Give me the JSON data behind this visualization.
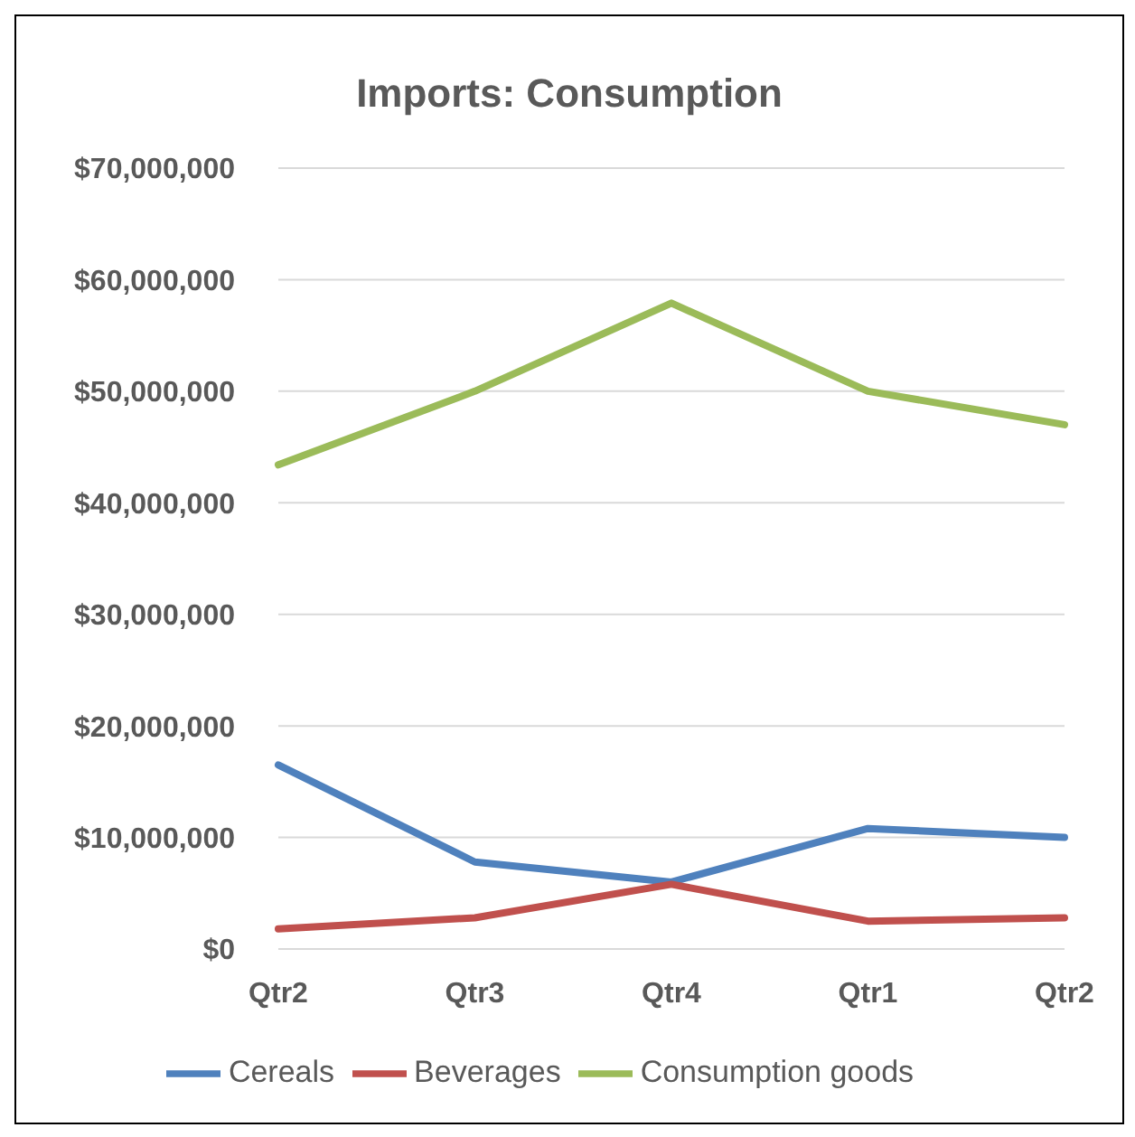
{
  "chart_data": {
    "type": "line",
    "title": "Imports: Consumption",
    "categories": [
      "Qtr2",
      "Qtr3",
      "Qtr4",
      "Qtr1",
      "Qtr2"
    ],
    "series": [
      {
        "name": "Cereals",
        "color": "#4f81bd",
        "values": [
          16500000,
          7800000,
          6000000,
          10800000,
          10000000
        ]
      },
      {
        "name": "Beverages",
        "color": "#c0504d",
        "values": [
          1800000,
          2800000,
          5800000,
          2500000,
          2800000
        ]
      },
      {
        "name": "Consumption goods",
        "color": "#9bbb59",
        "values": [
          43400000,
          50000000,
          57900000,
          50000000,
          47000000
        ]
      }
    ],
    "ylim": [
      0,
      70000000
    ],
    "yticks": [
      {
        "value": 0,
        "label": "$0"
      },
      {
        "value": 10000000,
        "label": "$10,000,000"
      },
      {
        "value": 20000000,
        "label": "$20,000,000"
      },
      {
        "value": 30000000,
        "label": "$30,000,000"
      },
      {
        "value": 40000000,
        "label": "$40,000,000"
      },
      {
        "value": 50000000,
        "label": "$50,000,000"
      },
      {
        "value": 60000000,
        "label": "$60,000,000"
      },
      {
        "value": 70000000,
        "label": "$70,000,000"
      }
    ],
    "grid": "y",
    "legend": "bottom",
    "marker": "none",
    "line_style": "solid"
  }
}
